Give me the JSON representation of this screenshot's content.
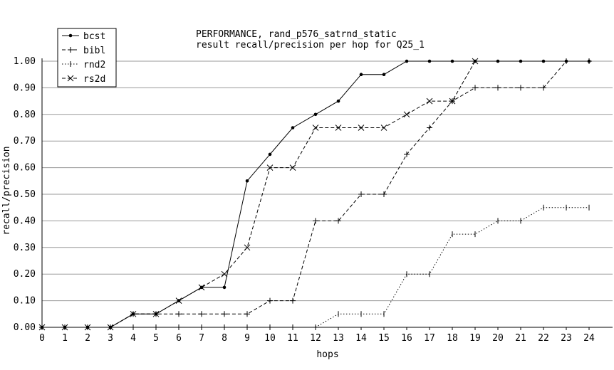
{
  "chart_data": {
    "type": "line",
    "title": "PERFORMANCE, rand_p576_satrnd_static",
    "subtitle": "result recall/precision per hop for Q25_1",
    "xlabel": "hops",
    "ylabel": "recall/precision",
    "xlim": [
      0,
      24
    ],
    "ylim": [
      0,
      1
    ],
    "grid": "horizontal",
    "legend_position": "top-left",
    "x_ticks": [
      0,
      1,
      2,
      3,
      4,
      5,
      6,
      7,
      8,
      9,
      10,
      11,
      12,
      13,
      14,
      15,
      16,
      17,
      18,
      19,
      20,
      21,
      22,
      23,
      24
    ],
    "y_ticks": [
      "0.00",
      "0.10",
      "0.20",
      "0.30",
      "0.40",
      "0.50",
      "0.60",
      "0.70",
      "0.80",
      "0.90",
      "1.00"
    ],
    "series": [
      {
        "name": "bcst",
        "marker": "dot",
        "line": "solid",
        "x": [
          0,
          1,
          2,
          3,
          4,
          5,
          6,
          7,
          8,
          9,
          10,
          11,
          12,
          13,
          14,
          15,
          16,
          17,
          18,
          19,
          20,
          21,
          22,
          23,
          24
        ],
        "y": [
          0,
          0,
          0,
          0,
          0.05,
          0.05,
          0.1,
          0.15,
          0.15,
          0.55,
          0.65,
          0.75,
          0.8,
          0.85,
          0.95,
          0.95,
          1,
          1,
          1,
          1,
          1,
          1,
          1,
          1,
          1
        ]
      },
      {
        "name": "bibl",
        "marker": "plus",
        "line": "dashed",
        "x": [
          0,
          1,
          2,
          3,
          4,
          5,
          6,
          7,
          8,
          9,
          10,
          11,
          12,
          13,
          14,
          15,
          16,
          17,
          18,
          19,
          20,
          21,
          22,
          23,
          24
        ],
        "y": [
          0,
          0,
          0,
          0,
          0.05,
          0.05,
          0.05,
          0.05,
          0.05,
          0.05,
          0.1,
          0.1,
          0.4,
          0.4,
          0.5,
          0.5,
          0.65,
          0.75,
          0.85,
          0.9,
          0.9,
          0.9,
          0.9,
          1,
          1
        ]
      },
      {
        "name": "rnd2",
        "marker": "tick",
        "line": "dotted",
        "x": [
          0,
          1,
          2,
          3,
          4,
          5,
          6,
          7,
          8,
          9,
          10,
          11,
          12,
          13,
          14,
          15,
          16,
          17,
          18,
          19,
          20,
          21,
          22,
          23,
          24
        ],
        "y": [
          0,
          0,
          0,
          0,
          0,
          0,
          0,
          0,
          0,
          0,
          0,
          0,
          0,
          0.05,
          0.05,
          0.05,
          0.2,
          0.2,
          0.35,
          0.35,
          0.4,
          0.4,
          0.45,
          0.45,
          0.45
        ]
      },
      {
        "name": "rs2d",
        "marker": "cross",
        "line": "dashed",
        "x": [
          0,
          1,
          2,
          3,
          4,
          5,
          6,
          7,
          8,
          9,
          10,
          11,
          12,
          13,
          14,
          15,
          16,
          17,
          18,
          19
        ],
        "y": [
          0,
          0,
          0,
          0,
          0.05,
          0.05,
          0.1,
          0.15,
          0.2,
          0.3,
          0.6,
          0.6,
          0.75,
          0.75,
          0.75,
          0.75,
          0.8,
          0.85,
          0.85,
          1
        ]
      }
    ]
  }
}
